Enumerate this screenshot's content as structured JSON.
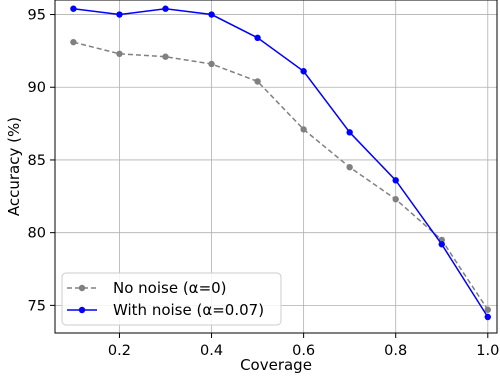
{
  "chart_data": {
    "type": "line",
    "title": "",
    "xlabel": "Coverage",
    "ylabel": "Accuracy (%)",
    "xlim": [
      0.06,
      1.02
    ],
    "ylim": [
      73.1,
      96.0
    ],
    "x_ticks": [
      0.2,
      0.4,
      0.6,
      0.8,
      1.0
    ],
    "x_tick_labels": [
      "0.2",
      "0.4",
      "0.6",
      "0.8",
      "1.0"
    ],
    "y_ticks": [
      75,
      80,
      85,
      90,
      95
    ],
    "y_tick_labels": [
      "75",
      "80",
      "85",
      "90",
      "95"
    ],
    "grid": true,
    "legend_position": "lower-left",
    "x": [
      0.1,
      0.2,
      0.3,
      0.4,
      0.5,
      0.6,
      0.7,
      0.8,
      0.9,
      1.0
    ],
    "series": [
      {
        "name": "No noise (α=0)",
        "color": "#808080",
        "line_style": "dashed",
        "marker": "circle",
        "values": [
          93.1,
          92.3,
          92.1,
          91.6,
          90.4,
          87.1,
          84.5,
          82.3,
          79.5,
          74.7
        ]
      },
      {
        "name": "With noise (α=0.07)",
        "color": "#0000ff",
        "line_style": "solid",
        "marker": "circle",
        "values": [
          95.4,
          95.0,
          95.4,
          95.0,
          93.4,
          91.1,
          86.9,
          83.6,
          79.2,
          74.2
        ]
      }
    ]
  }
}
